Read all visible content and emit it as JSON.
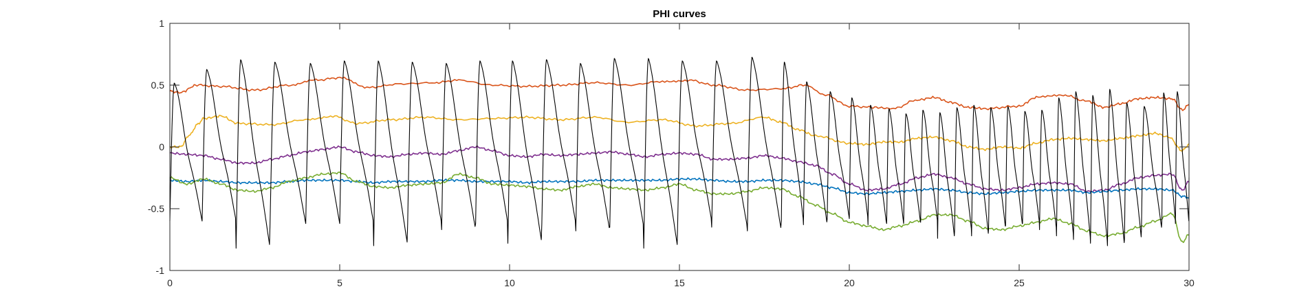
{
  "chart_data": {
    "type": "line",
    "title": "PHI curves",
    "xlabel": "",
    "ylabel": "",
    "xlim": [
      0,
      30
    ],
    "ylim": [
      -1,
      1
    ],
    "xticks": [
      0,
      5,
      10,
      15,
      20,
      25,
      30
    ],
    "yticks": [
      -1,
      -0.5,
      0,
      0.5,
      1
    ],
    "xtick_labels": [
      "0",
      "5",
      "10",
      "15",
      "20",
      "25",
      "30"
    ],
    "ytick_labels": [
      "-1",
      "-0.5",
      "0",
      "0.5",
      "1"
    ],
    "grid": false,
    "legend": "none",
    "series": [
      {
        "color": "#D95319",
        "x": [
          0,
          0.3,
          0.8,
          1.5,
          2.5,
          3.5,
          4.3,
          5.0,
          5.8,
          6.8,
          7.8,
          8.5,
          9.5,
          10.5,
          11.5,
          12.5,
          13.5,
          14.5,
          15.3,
          16.0,
          17.0,
          18.0,
          18.7,
          19.3,
          20.0,
          20.7,
          21.3,
          22.0,
          22.5,
          23.0,
          23.5,
          24.0,
          25.0,
          25.5,
          26.3,
          27.0,
          27.5,
          28.0,
          28.5,
          29.0,
          29.5,
          29.8,
          30.0
        ],
        "y": [
          0.45,
          0.44,
          0.5,
          0.49,
          0.46,
          0.5,
          0.54,
          0.56,
          0.48,
          0.51,
          0.52,
          0.54,
          0.5,
          0.49,
          0.5,
          0.52,
          0.5,
          0.53,
          0.54,
          0.5,
          0.46,
          0.47,
          0.5,
          0.42,
          0.33,
          0.32,
          0.31,
          0.38,
          0.4,
          0.36,
          0.32,
          0.31,
          0.33,
          0.4,
          0.42,
          0.37,
          0.32,
          0.35,
          0.39,
          0.4,
          0.39,
          0.3,
          0.34
        ]
      },
      {
        "color": "#EDB120",
        "x": [
          0,
          0.3,
          0.6,
          0.8,
          1.0,
          1.5,
          2.0,
          3.0,
          4.0,
          4.8,
          5.5,
          6.5,
          7.5,
          8.5,
          9.5,
          10.5,
          11.5,
          12.5,
          13.5,
          14.5,
          15.5,
          16.5,
          17.5,
          18.0,
          18.5,
          19.0,
          20.0,
          20.5,
          21.0,
          21.5,
          22.0,
          22.5,
          23.0,
          23.5,
          24.0,
          24.5,
          25.0,
          25.5,
          26.0,
          26.5,
          27.0,
          27.5,
          28.0,
          28.5,
          29.0,
          29.4,
          29.8,
          30.0
        ],
        "y": [
          0.0,
          0.0,
          0.1,
          0.18,
          0.23,
          0.25,
          0.19,
          0.18,
          0.22,
          0.25,
          0.19,
          0.22,
          0.24,
          0.22,
          0.23,
          0.24,
          0.22,
          0.24,
          0.2,
          0.22,
          0.17,
          0.19,
          0.24,
          0.2,
          0.14,
          0.09,
          0.03,
          0.02,
          0.04,
          0.04,
          0.07,
          0.08,
          0.05,
          0.0,
          -0.02,
          0.0,
          -0.01,
          0.03,
          0.06,
          0.07,
          0.06,
          0.05,
          0.07,
          0.09,
          0.11,
          0.08,
          -0.03,
          0.02
        ]
      },
      {
        "color": "#7E2F8E",
        "x": [
          0,
          0.5,
          1.0,
          1.5,
          2.0,
          2.5,
          3.0,
          3.5,
          4.0,
          4.5,
          5.0,
          5.5,
          6.0,
          6.5,
          7.0,
          7.5,
          8.0,
          8.5,
          9.0,
          9.5,
          10.0,
          10.5,
          11.0,
          11.5,
          12.0,
          12.5,
          13.0,
          13.5,
          14.0,
          14.5,
          15.0,
          15.5,
          16.0,
          16.5,
          17.0,
          17.5,
          18.0,
          18.5,
          19.0,
          19.5,
          20.0,
          20.5,
          21.0,
          21.5,
          22.0,
          22.5,
          23.0,
          23.5,
          24.0,
          24.5,
          25.0,
          25.5,
          26.0,
          26.5,
          27.0,
          27.5,
          28.0,
          28.5,
          29.0,
          29.5,
          29.8,
          30.0
        ],
        "y": [
          -0.05,
          -0.06,
          -0.07,
          -0.1,
          -0.13,
          -0.13,
          -0.1,
          -0.07,
          -0.04,
          -0.02,
          0.0,
          -0.04,
          -0.07,
          -0.08,
          -0.06,
          -0.05,
          -0.06,
          -0.03,
          0.0,
          -0.03,
          -0.07,
          -0.08,
          -0.06,
          -0.07,
          -0.06,
          -0.05,
          -0.04,
          -0.06,
          -0.08,
          -0.06,
          -0.05,
          -0.06,
          -0.1,
          -0.1,
          -0.09,
          -0.07,
          -0.09,
          -0.12,
          -0.15,
          -0.22,
          -0.3,
          -0.35,
          -0.34,
          -0.3,
          -0.25,
          -0.22,
          -0.25,
          -0.3,
          -0.34,
          -0.35,
          -0.33,
          -0.3,
          -0.29,
          -0.3,
          -0.36,
          -0.35,
          -0.3,
          -0.25,
          -0.23,
          -0.22,
          -0.35,
          -0.28
        ]
      },
      {
        "color": "#0072BD",
        "x": [
          0,
          0.5,
          1.0,
          1.5,
          2.0,
          2.5,
          3.0,
          3.5,
          4.0,
          4.5,
          5.0,
          5.5,
          6.0,
          6.5,
          7.0,
          7.5,
          8.0,
          8.5,
          9.0,
          9.5,
          10.0,
          10.5,
          11.0,
          11.5,
          12.0,
          12.5,
          13.0,
          13.5,
          14.0,
          14.5,
          15.0,
          15.5,
          16.0,
          16.5,
          17.0,
          17.5,
          18.0,
          18.5,
          19.0,
          19.5,
          20.0,
          20.5,
          21.0,
          21.5,
          22.0,
          22.5,
          23.0,
          23.5,
          24.0,
          24.5,
          25.0,
          25.5,
          26.0,
          26.5,
          27.0,
          27.5,
          28.0,
          28.5,
          29.0,
          29.5,
          29.8,
          30.0
        ],
        "y": [
          -0.27,
          -0.28,
          -0.27,
          -0.28,
          -0.29,
          -0.29,
          -0.29,
          -0.28,
          -0.27,
          -0.27,
          -0.27,
          -0.28,
          -0.29,
          -0.28,
          -0.28,
          -0.28,
          -0.27,
          -0.27,
          -0.28,
          -0.28,
          -0.28,
          -0.29,
          -0.28,
          -0.28,
          -0.28,
          -0.27,
          -0.27,
          -0.27,
          -0.27,
          -0.27,
          -0.26,
          -0.26,
          -0.27,
          -0.28,
          -0.28,
          -0.27,
          -0.27,
          -0.28,
          -0.3,
          -0.33,
          -0.37,
          -0.38,
          -0.37,
          -0.36,
          -0.35,
          -0.34,
          -0.35,
          -0.37,
          -0.38,
          -0.37,
          -0.36,
          -0.35,
          -0.35,
          -0.35,
          -0.37,
          -0.36,
          -0.35,
          -0.34,
          -0.34,
          -0.35,
          -0.4,
          -0.41
        ]
      },
      {
        "color": "#77AC30",
        "x": [
          0,
          0.5,
          1.0,
          1.5,
          2.0,
          2.5,
          3.0,
          3.5,
          4.0,
          4.5,
          5.0,
          5.5,
          6.0,
          6.5,
          7.0,
          7.5,
          8.0,
          8.5,
          9.0,
          9.5,
          10.0,
          10.5,
          11.0,
          11.5,
          12.0,
          12.5,
          13.0,
          13.5,
          14.0,
          14.5,
          15.0,
          15.5,
          16.0,
          16.5,
          17.0,
          17.5,
          18.0,
          18.5,
          19.0,
          19.5,
          20.0,
          20.5,
          21.0,
          21.5,
          22.0,
          22.5,
          23.0,
          23.5,
          24.0,
          24.5,
          25.0,
          25.5,
          26.0,
          26.5,
          27.0,
          27.5,
          28.0,
          28.5,
          29.0,
          29.5,
          29.8,
          30.0
        ],
        "y": [
          -0.25,
          -0.3,
          -0.26,
          -0.3,
          -0.35,
          -0.36,
          -0.33,
          -0.28,
          -0.25,
          -0.22,
          -0.21,
          -0.28,
          -0.32,
          -0.33,
          -0.31,
          -0.3,
          -0.29,
          -0.22,
          -0.25,
          -0.3,
          -0.31,
          -0.32,
          -0.34,
          -0.35,
          -0.32,
          -0.3,
          -0.33,
          -0.34,
          -0.35,
          -0.33,
          -0.3,
          -0.35,
          -0.38,
          -0.38,
          -0.36,
          -0.33,
          -0.34,
          -0.4,
          -0.47,
          -0.54,
          -0.61,
          -0.64,
          -0.67,
          -0.64,
          -0.6,
          -0.55,
          -0.55,
          -0.6,
          -0.66,
          -0.67,
          -0.64,
          -0.61,
          -0.58,
          -0.62,
          -0.68,
          -0.72,
          -0.7,
          -0.65,
          -0.6,
          -0.54,
          -0.77,
          -0.71
        ]
      },
      {
        "color": "#000000",
        "periods": [
          0.0,
          0.95,
          1.95,
          2.95,
          4.0,
          5.0,
          6.0,
          7.0,
          8.0,
          9.0,
          9.95,
          10.95,
          11.95,
          12.95,
          13.95,
          14.95,
          15.95,
          17.0,
          18.0,
          18.65,
          19.35,
          20.0,
          20.55,
          21.1,
          21.6,
          22.1,
          22.6,
          23.1,
          23.6,
          24.1,
          24.6,
          25.1,
          25.6,
          26.1,
          26.6,
          27.1,
          27.6,
          28.1,
          28.6,
          29.2,
          29.6
        ],
        "peaks": [
          0.52,
          0.63,
          0.71,
          0.69,
          0.68,
          0.7,
          0.7,
          0.69,
          0.68,
          0.7,
          0.7,
          0.71,
          0.68,
          0.72,
          0.72,
          0.7,
          0.7,
          0.73,
          0.69,
          0.53,
          0.45,
          0.4,
          0.34,
          0.31,
          0.27,
          0.3,
          0.28,
          0.32,
          0.34,
          0.32,
          0.33,
          0.29,
          0.3,
          0.4,
          0.45,
          0.42,
          0.47,
          0.36,
          0.33,
          0.44,
          0.45
        ],
        "troughs": [
          -0.6,
          -0.6,
          -0.82,
          -0.62,
          -0.62,
          -0.62,
          -0.8,
          -0.62,
          -0.67,
          -0.62,
          -0.78,
          -0.62,
          -0.68,
          -0.65,
          -0.82,
          -0.6,
          -0.65,
          -0.68,
          -0.6,
          -0.63,
          -0.58,
          -0.58,
          -0.63,
          -0.62,
          -0.62,
          -0.61,
          -0.74,
          -0.68,
          -0.72,
          -0.66,
          -0.64,
          -0.62,
          -0.67,
          -0.72,
          -0.75,
          -0.78,
          -0.8,
          -0.75,
          -0.67,
          -0.6,
          -0.62
        ]
      }
    ]
  }
}
